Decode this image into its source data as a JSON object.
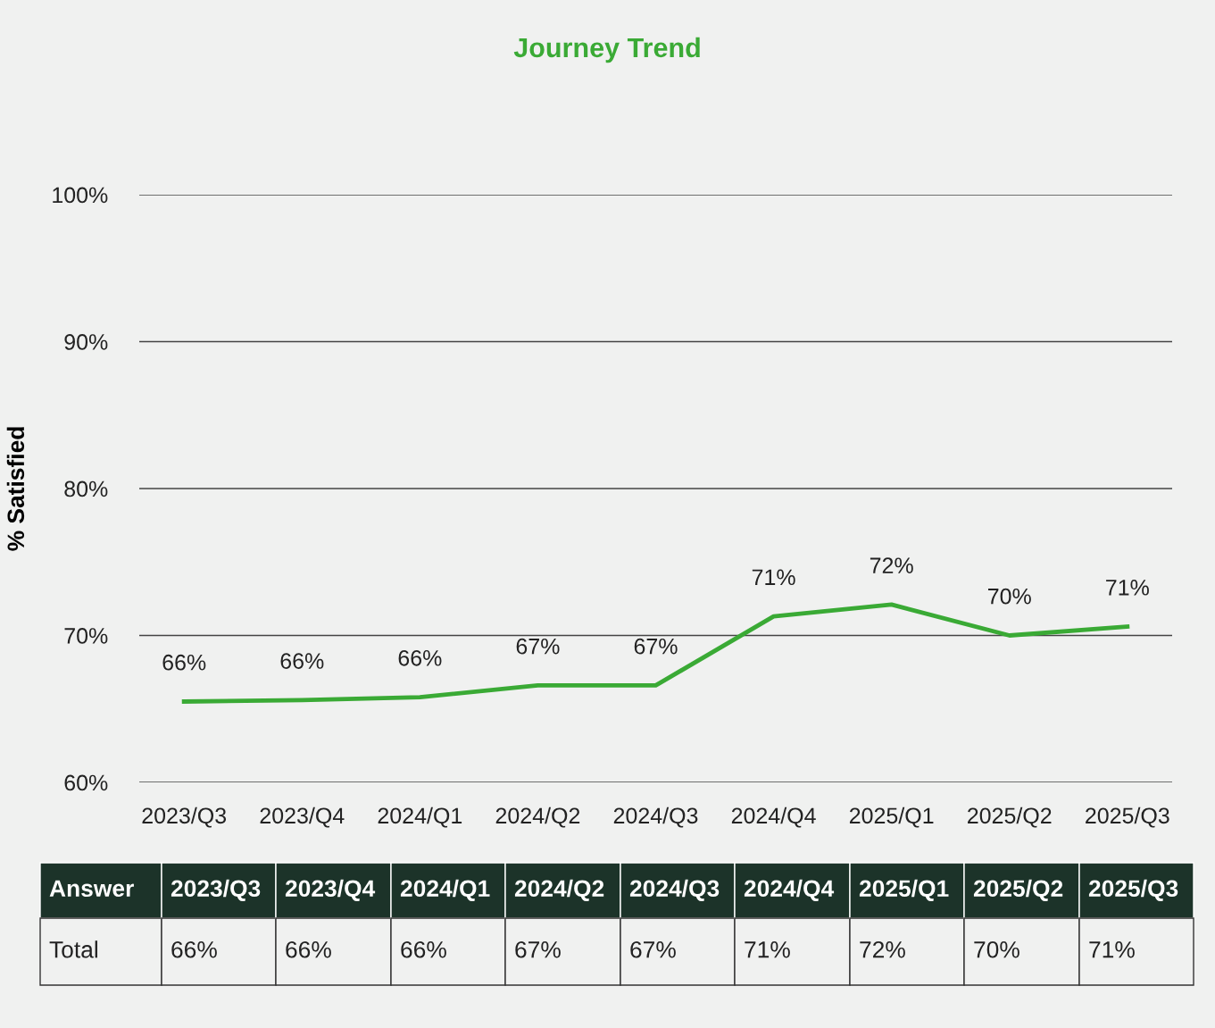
{
  "chart_data": {
    "type": "line",
    "title": "Journey Trend",
    "ylabel": "% Satisfied",
    "categories": [
      "2023/Q3",
      "2023/Q4",
      "2024/Q1",
      "2024/Q2",
      "2024/Q3",
      "2024/Q4",
      "2025/Q1",
      "2025/Q2",
      "2025/Q3"
    ],
    "series": [
      {
        "color": "#3aaa35",
        "values": [
          65.5,
          65.6,
          65.8,
          66.6,
          66.6,
          71.3,
          72.1,
          70.0,
          70.6
        ],
        "value_labels": [
          "66%",
          "66%",
          "66%",
          "67%",
          "67%",
          "71%",
          "72%",
          "70%",
          "71%"
        ]
      }
    ],
    "ylim": [
      60,
      100
    ],
    "yticks": [
      {
        "value": 60,
        "label": "60%"
      },
      {
        "value": 70,
        "label": "70%"
      },
      {
        "value": 80,
        "label": "80%"
      },
      {
        "value": 90,
        "label": "90%"
      },
      {
        "value": 100,
        "label": "100%"
      }
    ],
    "grid": "y",
    "legend": false,
    "marker": "none",
    "line_style": "solid",
    "annotations": [
      "Answer",
      "Total"
    ]
  }
}
